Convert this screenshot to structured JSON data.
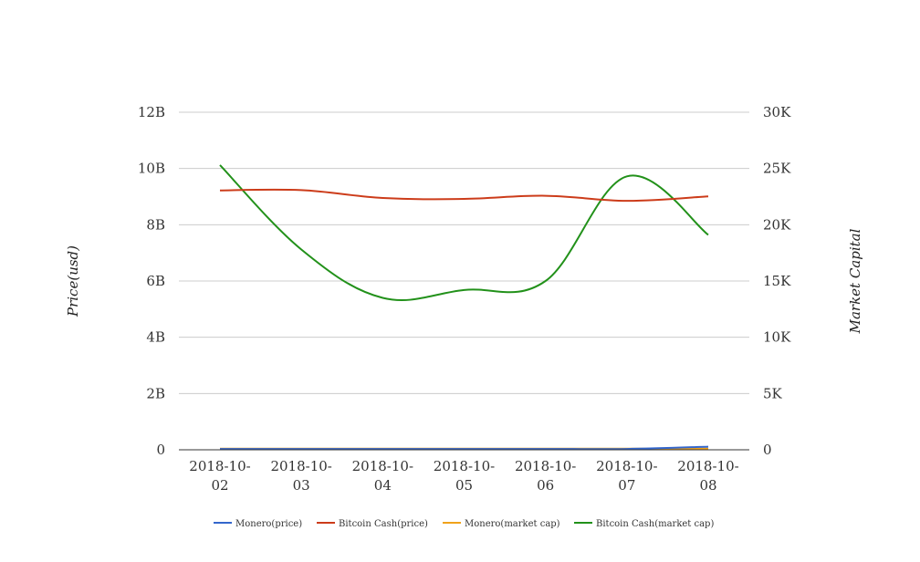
{
  "chart_data": {
    "type": "line",
    "title": "",
    "categories": [
      "2018-10-02",
      "2018-10-03",
      "2018-10-04",
      "2018-10-05",
      "2018-10-06",
      "2018-10-07",
      "2018-10-08"
    ],
    "category_lines": [
      [
        "2018-10-",
        "02"
      ],
      [
        "2018-10-",
        "03"
      ],
      [
        "2018-10-",
        "04"
      ],
      [
        "2018-10-",
        "05"
      ],
      [
        "2018-10-",
        "06"
      ],
      [
        "2018-10-",
        "07"
      ],
      [
        "2018-10-",
        "08"
      ]
    ],
    "ylabel_left": "Price(usd)",
    "ylabel_right": "Market Capital",
    "y_left": {
      "min": 0,
      "max": 12000000000,
      "ticks": [
        0,
        2000000000,
        4000000000,
        6000000000,
        8000000000,
        10000000000,
        12000000000
      ],
      "tick_labels": [
        "0",
        "2B",
        "4B",
        "6B",
        "8B",
        "10B",
        "12B"
      ]
    },
    "y_right": {
      "min": 0,
      "max": 30000,
      "ticks": [
        0,
        5000,
        10000,
        15000,
        20000,
        25000,
        30000
      ],
      "tick_labels": [
        "0",
        "5K",
        "10K",
        "15K",
        "20K",
        "25K",
        "30K"
      ]
    },
    "grid": true,
    "legend_position": "bottom",
    "series": [
      {
        "name": "Monero(price)",
        "axis": "left",
        "color": "#3366cc",
        "values": [
          30000000,
          30000000,
          30000000,
          30000000,
          30000000,
          30000000,
          110000000
        ]
      },
      {
        "name": "Bitcoin Cash(price)",
        "axis": "left",
        "color": "#cc3c1a",
        "values": [
          9220000000,
          9230000000,
          8950000000,
          8920000000,
          9030000000,
          8850000000,
          9010000000
        ]
      },
      {
        "name": "Monero(market cap)",
        "axis": "right",
        "color": "#f0a21a",
        "values": [
          100,
          100,
          100,
          100,
          100,
          100,
          100
        ]
      },
      {
        "name": "Bitcoin Cash(market cap)",
        "axis": "right",
        "color": "#22911a",
        "values": [
          25300,
          17800,
          13500,
          14200,
          15000,
          24300,
          19100
        ]
      }
    ]
  }
}
